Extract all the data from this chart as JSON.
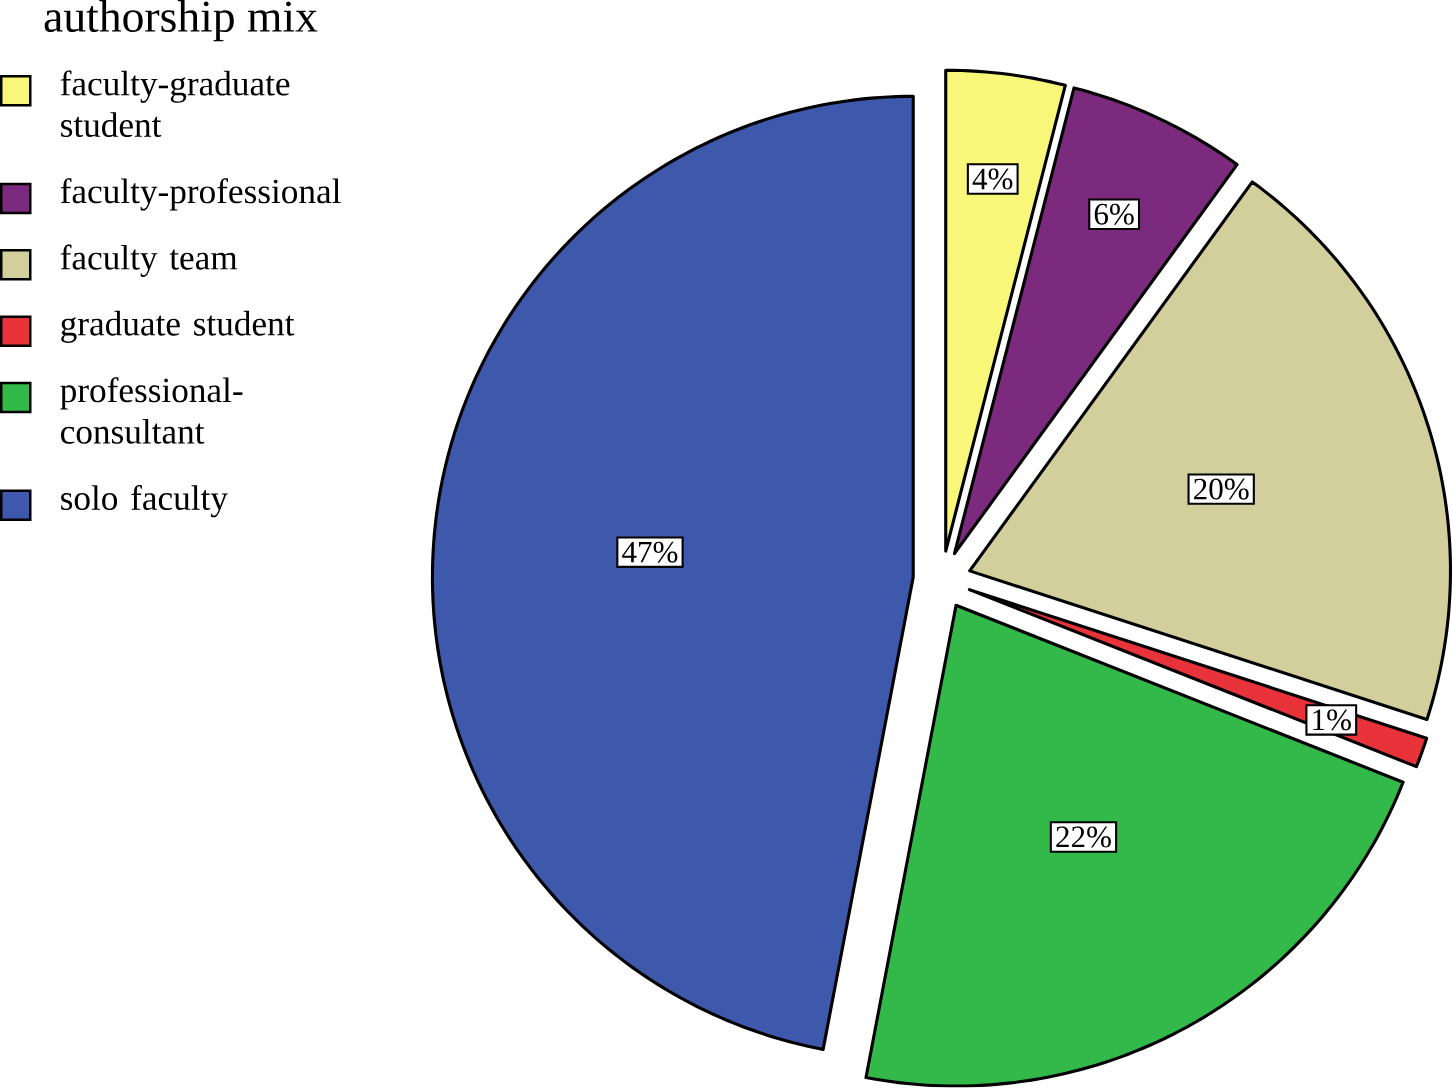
{
  "chart_data": {
    "type": "pie",
    "legend_title": "authorship mix",
    "legend": "top left",
    "categories": [
      "faculty-graduate student",
      "faculty-professional",
      "faculty team",
      "graduate student",
      "professional-consultant",
      "solo faculty"
    ],
    "values": [
      4,
      6,
      20,
      1,
      22,
      47
    ],
    "value_labels": [
      "4%",
      "6%",
      "20%",
      "1%",
      "22%",
      "47%"
    ],
    "colors": [
      "#f9f77a",
      "#7b2a7e",
      "#d3cf9c",
      "#e8333a",
      "#33b84a",
      "#3e58ab"
    ]
  }
}
